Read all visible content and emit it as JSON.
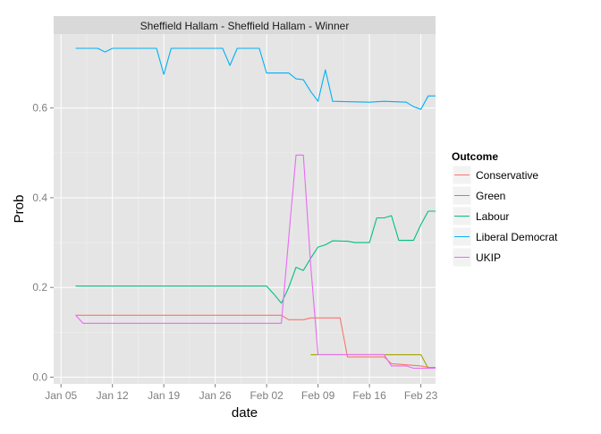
{
  "chart_data": {
    "type": "line",
    "title": "",
    "facet_label": "Sheffield Hallam - Sheffield Hallam - Winner",
    "xlabel": "date",
    "ylabel": "Prob",
    "x_axis_type": "date",
    "xlim": [
      "2015-01-04",
      "2015-02-25"
    ],
    "ylim": [
      -0.015,
      0.765
    ],
    "x_ticks": [
      {
        "date": "2015-01-05",
        "label": "Jan 05"
      },
      {
        "date": "2015-01-12",
        "label": "Jan 12"
      },
      {
        "date": "2015-01-19",
        "label": "Jan 19"
      },
      {
        "date": "2015-01-26",
        "label": "Jan 26"
      },
      {
        "date": "2015-02-02",
        "label": "Feb 02"
      },
      {
        "date": "2015-02-09",
        "label": "Feb 09"
      },
      {
        "date": "2015-02-16",
        "label": "Feb 16"
      },
      {
        "date": "2015-02-23",
        "label": "Feb 23"
      }
    ],
    "y_ticks": [
      {
        "value": 0.0,
        "label": "0.0"
      },
      {
        "value": 0.2,
        "label": "0.2"
      },
      {
        "value": 0.4,
        "label": "0.4"
      },
      {
        "value": 0.6,
        "label": "0.6"
      }
    ],
    "grid": true,
    "legend": {
      "title": "Outcome",
      "position": "right"
    },
    "series": [
      {
        "name": "Conservative",
        "color": "#F8766D",
        "points": [
          [
            "2015-01-07",
            0.138
          ],
          [
            "2015-02-04",
            0.138
          ],
          [
            "2015-02-05",
            0.128
          ],
          [
            "2015-02-07",
            0.128
          ],
          [
            "2015-02-08",
            0.132
          ],
          [
            "2015-02-12",
            0.132
          ],
          [
            "2015-02-13",
            0.045
          ],
          [
            "2015-02-18",
            0.045
          ],
          [
            "2015-02-19",
            0.03
          ],
          [
            "2015-02-23",
            0.025
          ],
          [
            "2015-02-24",
            0.022
          ],
          [
            "2015-02-25",
            0.022
          ]
        ]
      },
      {
        "name": "Green",
        "color": "#A3A500",
        "points": [
          [
            "2015-02-08",
            0.05
          ],
          [
            "2015-02-23",
            0.05
          ],
          [
            "2015-02-24",
            0.02
          ],
          [
            "2015-02-25",
            0.02
          ]
        ]
      },
      {
        "name": "Labour",
        "color": "#00BF7D",
        "points": [
          [
            "2015-01-07",
            0.203
          ],
          [
            "2015-02-02",
            0.203
          ],
          [
            "2015-02-03",
            0.185
          ],
          [
            "2015-02-04",
            0.165
          ],
          [
            "2015-02-05",
            0.2
          ],
          [
            "2015-02-06",
            0.245
          ],
          [
            "2015-02-07",
            0.238
          ],
          [
            "2015-02-08",
            0.265
          ],
          [
            "2015-02-09",
            0.29
          ],
          [
            "2015-02-10",
            0.295
          ],
          [
            "2015-02-11",
            0.304
          ],
          [
            "2015-02-13",
            0.303
          ],
          [
            "2015-02-14",
            0.3
          ],
          [
            "2015-02-16",
            0.3
          ],
          [
            "2015-02-17",
            0.355
          ],
          [
            "2015-02-18",
            0.355
          ],
          [
            "2015-02-19",
            0.36
          ],
          [
            "2015-02-20",
            0.305
          ],
          [
            "2015-02-22",
            0.305
          ],
          [
            "2015-02-23",
            0.34
          ],
          [
            "2015-02-24",
            0.37
          ],
          [
            "2015-02-25",
            0.37
          ]
        ]
      },
      {
        "name": "Liberal Democrat",
        "color": "#00B0F6",
        "points": [
          [
            "2015-01-07",
            0.733
          ],
          [
            "2015-01-10",
            0.733
          ],
          [
            "2015-01-11",
            0.725
          ],
          [
            "2015-01-12",
            0.733
          ],
          [
            "2015-01-18",
            0.733
          ],
          [
            "2015-01-19",
            0.675
          ],
          [
            "2015-01-20",
            0.733
          ],
          [
            "2015-01-27",
            0.733
          ],
          [
            "2015-01-28",
            0.695
          ],
          [
            "2015-01-29",
            0.733
          ],
          [
            "2015-02-01",
            0.733
          ],
          [
            "2015-02-02",
            0.678
          ],
          [
            "2015-02-05",
            0.678
          ],
          [
            "2015-02-06",
            0.665
          ],
          [
            "2015-02-07",
            0.663
          ],
          [
            "2015-02-08",
            0.637
          ],
          [
            "2015-02-09",
            0.615
          ],
          [
            "2015-02-10",
            0.685
          ],
          [
            "2015-02-11",
            0.615
          ],
          [
            "2015-02-16",
            0.613
          ],
          [
            "2015-02-18",
            0.615
          ],
          [
            "2015-02-21",
            0.613
          ],
          [
            "2015-02-22",
            0.603
          ],
          [
            "2015-02-23",
            0.597
          ],
          [
            "2015-02-24",
            0.627
          ],
          [
            "2015-02-25",
            0.627
          ]
        ]
      },
      {
        "name": "UKIP",
        "color": "#E76BF3",
        "points": [
          [
            "2015-01-07",
            0.138
          ],
          [
            "2015-01-08",
            0.12
          ],
          [
            "2015-02-04",
            0.12
          ],
          [
            "2015-02-05",
            0.31
          ],
          [
            "2015-02-06",
            0.495
          ],
          [
            "2015-02-07",
            0.495
          ],
          [
            "2015-02-08",
            0.25
          ],
          [
            "2015-02-09",
            0.05
          ],
          [
            "2015-02-18",
            0.05
          ],
          [
            "2015-02-19",
            0.025
          ],
          [
            "2015-02-21",
            0.025
          ],
          [
            "2015-02-22",
            0.02
          ],
          [
            "2015-02-25",
            0.02
          ]
        ]
      }
    ]
  }
}
